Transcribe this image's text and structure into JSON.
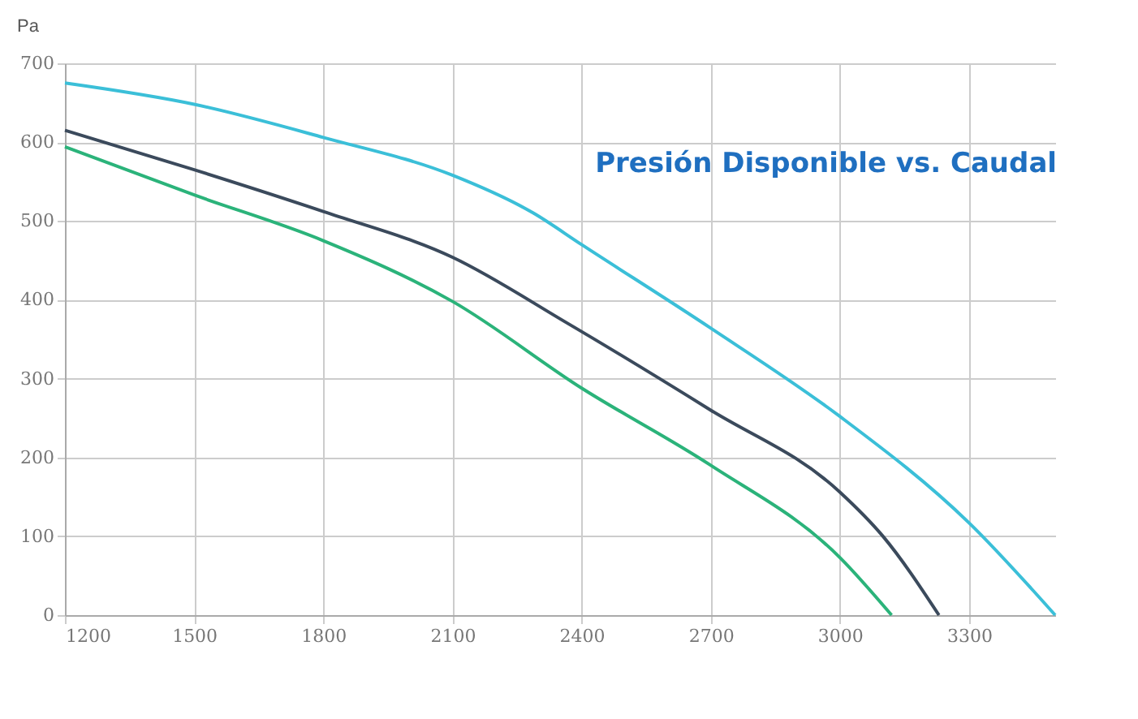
{
  "chart_data": {
    "type": "line",
    "title": "Presión Disponible vs. Caudal",
    "ylabel": "Pa",
    "xlim": [
      1200,
      3500
    ],
    "xticks": [
      1200,
      1500,
      1800,
      2100,
      2400,
      2700,
      3000,
      3300
    ],
    "ylim": [
      0,
      700
    ],
    "yticks": [
      0,
      100,
      200,
      300,
      400,
      500,
      600,
      700
    ],
    "grid": true,
    "legend": false,
    "marker": "none",
    "line_style": "solid",
    "series": [
      {
        "color": "#3bbfd8",
        "x": [
          1200,
          1500,
          1800,
          2100,
          2288,
          2400,
          2700,
          3000,
          3300,
          3500
        ],
        "values": [
          675,
          648,
          606,
          558,
          510,
          470,
          364,
          252,
          117,
          0
        ]
      },
      {
        "color": "#3b4a5c",
        "x": [
          1200,
          1500,
          1800,
          2100,
          2365,
          2700,
          3000,
          3100,
          3230
        ],
        "values": [
          615,
          565,
          512,
          454,
          371,
          260,
          156,
          100,
          0
        ]
      },
      {
        "color": "#2bb37a",
        "x": [
          1200,
          1500,
          1800,
          2100,
          2400,
          2700,
          3000,
          3120
        ],
        "values": [
          594,
          533,
          475,
          398,
          288,
          190,
          73,
          0
        ]
      }
    ]
  }
}
